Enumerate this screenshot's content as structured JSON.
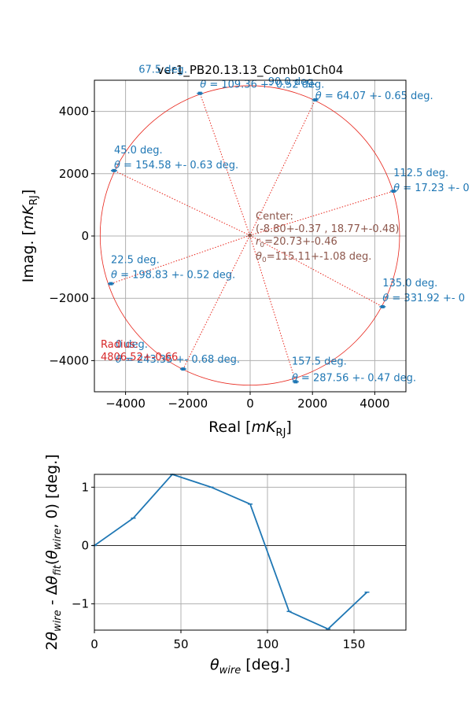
{
  "figure_title": "ver1_PB20.13.13_Comb01Ch04",
  "colors": {
    "circle": "#e8261c",
    "points": "#1f77b4",
    "center": "#8c564b",
    "radius_label": "#d62728",
    "grid": "#b0b0b0"
  },
  "chart_data": [
    {
      "type": "scatter",
      "title": "ver1_PB20.13.13_Comb01Ch04",
      "xlabel": "Real [",
      "xlabel_sym": "mK",
      "xlabel_sub": "RJ",
      "xlabel_end": "]",
      "ylabel": "Imag. [",
      "ylabel_sym": "mK",
      "ylabel_sub": "RJ",
      "ylabel_end": "]",
      "xlim": [
        -5000,
        5000
      ],
      "ylim": [
        -5000,
        5000
      ],
      "xticks": [
        -4000,
        -2000,
        0,
        2000,
        4000
      ],
      "yticks": [
        -4000,
        -2000,
        0,
        2000,
        4000
      ],
      "xtick_labels": [
        "−4000",
        "−2000",
        "0",
        "2000",
        "4000"
      ],
      "ytick_labels": [
        "−4000",
        "−2000",
        "0",
        "2000",
        "4000"
      ],
      "grid": true,
      "circle": {
        "cx": -8.8,
        "cy": 18.77,
        "r": 4806.52
      },
      "center_text": [
        "Center:",
        "(-8.80+-0.37 , 18.77+-0.48)",
        "r0=20.73+-0.46",
        "θ0=115.11+-1.08 deg."
      ],
      "radius_text": [
        "Radius:",
        "4806.52+-0.66"
      ],
      "points": [
        {
          "x": -2150,
          "y": -4270,
          "label1": "0 deg.",
          "label2": "θ = 243.35 +- 0.68 deg."
        },
        {
          "x": -4470,
          "y": -1530,
          "label1": "22.5 deg.",
          "label2": "θ = 198.83 +- 0.52 deg."
        },
        {
          "x": -4370,
          "y": 2100,
          "label1": "45.0 deg.",
          "label2": "θ = 154.58 +- 0.63 deg."
        },
        {
          "x": -1610,
          "y": 4580,
          "label1": "67.5 deg.",
          "label2": "θ = 109.36 +- 0.52 deg."
        },
        {
          "x": 2090,
          "y": 4370,
          "label1": "90.0 deg.",
          "label2": "θ = 64.07 +- 0.65 deg."
        },
        {
          "x": 4600,
          "y": 1440,
          "label1": "112.5 deg.",
          "label2": "θ = 17.23 +- 0"
        },
        {
          "x": 4250,
          "y": -2270,
          "label1": "135.0 deg.",
          "label2": "θ = 331.92 +- 0"
        },
        {
          "x": 1460,
          "y": -4680,
          "label1": "157.5 deg.",
          "label2": "θ = 287.56 +- 0.47 deg."
        }
      ]
    },
    {
      "type": "line",
      "xlabel": "θwire [deg.]",
      "ylabel": "2θwire - Δθfit(θwire, 0) [deg.]",
      "xlim": [
        0,
        180
      ],
      "ylim": [
        -1.45,
        1.22
      ],
      "xticks": [
        0,
        50,
        100,
        150
      ],
      "yticks": [
        -1,
        0,
        1
      ],
      "xtick_labels": [
        "0",
        "50",
        "100",
        "150"
      ],
      "ytick_labels": [
        "−1",
        "0",
        "1"
      ],
      "grid": true,
      "hline": 0,
      "x": [
        0,
        22.5,
        45,
        67.5,
        90,
        112.5,
        135,
        157.5
      ],
      "y": [
        0.0,
        0.47,
        1.22,
        1.0,
        0.71,
        -1.13,
        -1.43,
        -0.8
      ]
    }
  ]
}
